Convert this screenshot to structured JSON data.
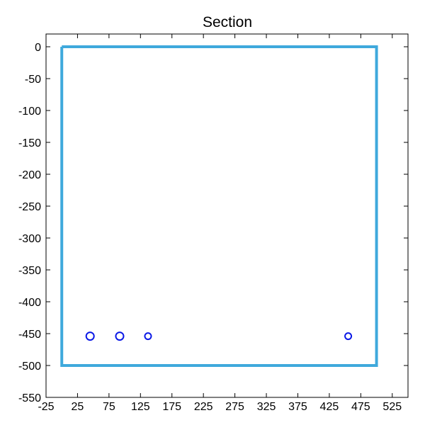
{
  "chart_data": {
    "type": "scatter",
    "title": "Section",
    "xlabel": "",
    "ylabel": "",
    "xlim": [
      -25,
      550
    ],
    "ylim": [
      -550,
      20
    ],
    "grid": false,
    "x_ticks": [
      -25,
      25,
      75,
      125,
      175,
      225,
      275,
      325,
      375,
      425,
      475,
      525
    ],
    "x_tick_labels": [
      "-25",
      "25",
      "75",
      "125",
      "175",
      "225",
      "275",
      "325",
      "375",
      "425",
      "475",
      "525"
    ],
    "y_ticks": [
      0,
      -50,
      -100,
      -150,
      -200,
      -250,
      -300,
      -350,
      -400,
      -450,
      -500,
      -550
    ],
    "y_tick_labels": [
      "0",
      "-50",
      "-100",
      "-150",
      "-200",
      "-250",
      "-300",
      "-350",
      "-400",
      "-450",
      "-500",
      "-550"
    ],
    "section_outline": {
      "x": [
        0,
        500,
        500,
        0,
        0
      ],
      "y": [
        0,
        0,
        -500,
        -500,
        0
      ],
      "color": "#3fa9dc"
    },
    "points": {
      "x": [
        45,
        92,
        137,
        455
      ],
      "y": [
        -454,
        -454,
        -454,
        -454
      ],
      "size": [
        "large",
        "large",
        "small",
        "small"
      ],
      "color": "#0a18e6"
    },
    "colors": {
      "axes": "#000000",
      "background": "#ffffff"
    }
  }
}
